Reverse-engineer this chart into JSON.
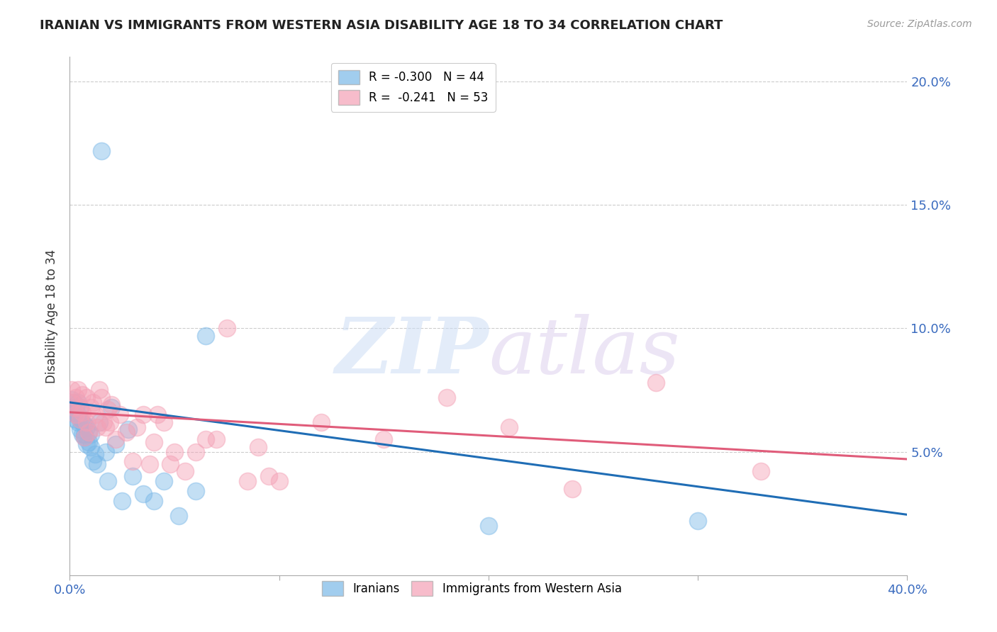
{
  "title": "IRANIAN VS IMMIGRANTS FROM WESTERN ASIA DISABILITY AGE 18 TO 34 CORRELATION CHART",
  "source": "Source: ZipAtlas.com",
  "ylabel": "Disability Age 18 to 34",
  "legend_entries": [
    {
      "label": "R = -0.300   N = 44",
      "color": "#7ab8e8"
    },
    {
      "label": "R =  -0.241   N = 53",
      "color": "#f4a0b5"
    }
  ],
  "legend_labels_bottom": [
    "Iranians",
    "Immigrants from Western Asia"
  ],
  "iranians_x": [
    0.001,
    0.001,
    0.002,
    0.002,
    0.003,
    0.003,
    0.003,
    0.004,
    0.004,
    0.004,
    0.005,
    0.005,
    0.005,
    0.006,
    0.006,
    0.007,
    0.007,
    0.007,
    0.008,
    0.008,
    0.009,
    0.009,
    0.01,
    0.01,
    0.011,
    0.012,
    0.013,
    0.014,
    0.015,
    0.017,
    0.018,
    0.02,
    0.022,
    0.025,
    0.028,
    0.03,
    0.035,
    0.04,
    0.045,
    0.052,
    0.06,
    0.065,
    0.2,
    0.3
  ],
  "iranians_y": [
    0.071,
    0.068,
    0.066,
    0.07,
    0.065,
    0.068,
    0.063,
    0.065,
    0.07,
    0.062,
    0.068,
    0.063,
    0.059,
    0.057,
    0.062,
    0.056,
    0.061,
    0.057,
    0.053,
    0.06,
    0.054,
    0.058,
    0.052,
    0.057,
    0.046,
    0.049,
    0.045,
    0.062,
    0.172,
    0.05,
    0.038,
    0.068,
    0.053,
    0.03,
    0.059,
    0.04,
    0.033,
    0.03,
    0.038,
    0.024,
    0.034,
    0.097,
    0.02,
    0.022
  ],
  "western_asia_x": [
    0.001,
    0.001,
    0.002,
    0.003,
    0.003,
    0.004,
    0.005,
    0.005,
    0.006,
    0.006,
    0.007,
    0.008,
    0.008,
    0.009,
    0.01,
    0.011,
    0.012,
    0.013,
    0.014,
    0.015,
    0.016,
    0.017,
    0.018,
    0.019,
    0.02,
    0.022,
    0.024,
    0.027,
    0.03,
    0.032,
    0.035,
    0.038,
    0.04,
    0.042,
    0.045,
    0.048,
    0.05,
    0.055,
    0.06,
    0.065,
    0.07,
    0.075,
    0.085,
    0.09,
    0.095,
    0.1,
    0.12,
    0.15,
    0.18,
    0.21,
    0.24,
    0.28,
    0.33
  ],
  "western_asia_y": [
    0.075,
    0.07,
    0.068,
    0.072,
    0.065,
    0.075,
    0.068,
    0.063,
    0.066,
    0.073,
    0.056,
    0.062,
    0.072,
    0.058,
    0.068,
    0.07,
    0.065,
    0.06,
    0.075,
    0.072,
    0.062,
    0.06,
    0.067,
    0.062,
    0.069,
    0.055,
    0.065,
    0.058,
    0.046,
    0.06,
    0.065,
    0.045,
    0.054,
    0.065,
    0.062,
    0.045,
    0.05,
    0.042,
    0.05,
    0.055,
    0.055,
    0.1,
    0.038,
    0.052,
    0.04,
    0.038,
    0.062,
    0.055,
    0.072,
    0.06,
    0.035,
    0.078,
    0.042
  ],
  "iranian_trend_x": [
    0.0,
    0.4
  ],
  "iranian_trend_y": [
    0.07,
    0.0245
  ],
  "western_trend_x": [
    0.0,
    0.4
  ],
  "western_trend_y": [
    0.066,
    0.047
  ],
  "xlim": [
    0.0,
    0.4
  ],
  "ylim": [
    0.0,
    0.21
  ],
  "yticks": [
    0.05,
    0.1,
    0.15,
    0.2
  ],
  "ytick_labels": [
    "5.0%",
    "10.0%",
    "15.0%",
    "20.0%"
  ],
  "blue_scatter": "#7ab8e8",
  "pink_scatter": "#f4a0b5",
  "blue_line": "#1f6db5",
  "pink_line": "#e05c7a",
  "axis_label_color": "#3a6bbf",
  "background_color": "#ffffff",
  "grid_color": "#cccccc",
  "title_fontsize": 13,
  "source_text": "Source: ZipAtlas.com"
}
